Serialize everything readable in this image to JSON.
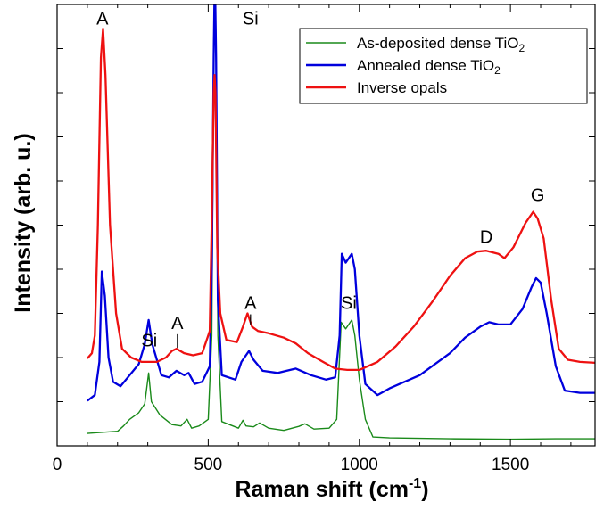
{
  "chart_data": {
    "type": "line",
    "title": "",
    "xlabel_main": "Raman shift (cm",
    "xlabel_sup": "-1",
    "xlabel_tail": ")",
    "ylabel": "Intensity (arb. u.)",
    "xlim": [
      0,
      1780
    ],
    "ylim": [
      0,
      1000
    ],
    "x_ticks": [
      0,
      500,
      1000,
      1500
    ],
    "y_ticks_unlabeled": true,
    "grid": false,
    "legend_position": "top-right",
    "series": [
      {
        "name": "As-deposited dense TiO",
        "name_sub": "2",
        "color": "#1a8a1a",
        "points": [
          [
            100,
            28
          ],
          [
            200,
            33
          ],
          [
            220,
            45
          ],
          [
            240,
            60
          ],
          [
            270,
            75
          ],
          [
            290,
            95
          ],
          [
            303,
            165
          ],
          [
            312,
            100
          ],
          [
            340,
            70
          ],
          [
            380,
            48
          ],
          [
            410,
            45
          ],
          [
            430,
            60
          ],
          [
            445,
            40
          ],
          [
            470,
            45
          ],
          [
            500,
            60
          ],
          [
            512,
            250
          ],
          [
            518,
            900
          ],
          [
            522,
            1100
          ],
          [
            526,
            900
          ],
          [
            532,
            250
          ],
          [
            545,
            55
          ],
          [
            600,
            40
          ],
          [
            615,
            58
          ],
          [
            625,
            45
          ],
          [
            650,
            43
          ],
          [
            670,
            52
          ],
          [
            700,
            40
          ],
          [
            750,
            35
          ],
          [
            800,
            44
          ],
          [
            820,
            50
          ],
          [
            850,
            38
          ],
          [
            900,
            40
          ],
          [
            925,
            60
          ],
          [
            940,
            280
          ],
          [
            955,
            265
          ],
          [
            975,
            285
          ],
          [
            985,
            250
          ],
          [
            1000,
            150
          ],
          [
            1020,
            60
          ],
          [
            1045,
            20
          ],
          [
            1100,
            18
          ],
          [
            1300,
            16
          ],
          [
            1500,
            15
          ],
          [
            1650,
            16
          ],
          [
            1780,
            16
          ]
        ]
      },
      {
        "name": "Annealed dense TiO",
        "name_sub": "2",
        "color": "#0000dd",
        "points": [
          [
            100,
            102
          ],
          [
            125,
            115
          ],
          [
            140,
            190
          ],
          [
            148,
            395
          ],
          [
            158,
            340
          ],
          [
            170,
            200
          ],
          [
            185,
            145
          ],
          [
            210,
            135
          ],
          [
            240,
            160
          ],
          [
            270,
            185
          ],
          [
            290,
            230
          ],
          [
            303,
            285
          ],
          [
            315,
            230
          ],
          [
            345,
            160
          ],
          [
            370,
            155
          ],
          [
            395,
            170
          ],
          [
            420,
            160
          ],
          [
            435,
            165
          ],
          [
            455,
            140
          ],
          [
            480,
            145
          ],
          [
            505,
            180
          ],
          [
            512,
            400
          ],
          [
            518,
            880
          ],
          [
            522,
            1080
          ],
          [
            526,
            880
          ],
          [
            532,
            330
          ],
          [
            545,
            160
          ],
          [
            590,
            150
          ],
          [
            610,
            190
          ],
          [
            635,
            215
          ],
          [
            650,
            195
          ],
          [
            680,
            170
          ],
          [
            730,
            165
          ],
          [
            790,
            175
          ],
          [
            840,
            160
          ],
          [
            890,
            150
          ],
          [
            920,
            155
          ],
          [
            935,
            250
          ],
          [
            942,
            435
          ],
          [
            955,
            415
          ],
          [
            975,
            435
          ],
          [
            985,
            400
          ],
          [
            1000,
            250
          ],
          [
            1020,
            140
          ],
          [
            1060,
            115
          ],
          [
            1100,
            130
          ],
          [
            1200,
            160
          ],
          [
            1300,
            210
          ],
          [
            1350,
            245
          ],
          [
            1400,
            270
          ],
          [
            1430,
            280
          ],
          [
            1460,
            275
          ],
          [
            1500,
            275
          ],
          [
            1540,
            310
          ],
          [
            1570,
            360
          ],
          [
            1585,
            380
          ],
          [
            1600,
            370
          ],
          [
            1620,
            300
          ],
          [
            1650,
            180
          ],
          [
            1680,
            125
          ],
          [
            1730,
            120
          ],
          [
            1780,
            120
          ]
        ]
      },
      {
        "name": "Inverse opals",
        "name_sub": "",
        "color": "#ee1111",
        "points": [
          [
            100,
            198
          ],
          [
            115,
            210
          ],
          [
            125,
            250
          ],
          [
            135,
            500
          ],
          [
            145,
            880
          ],
          [
            152,
            945
          ],
          [
            160,
            840
          ],
          [
            175,
            500
          ],
          [
            195,
            300
          ],
          [
            215,
            220
          ],
          [
            245,
            200
          ],
          [
            280,
            190
          ],
          [
            300,
            190
          ],
          [
            330,
            190
          ],
          [
            360,
            200
          ],
          [
            380,
            215
          ],
          [
            395,
            220
          ],
          [
            420,
            210
          ],
          [
            450,
            205
          ],
          [
            480,
            210
          ],
          [
            505,
            260
          ],
          [
            512,
            520
          ],
          [
            518,
            800
          ],
          [
            521,
            840
          ],
          [
            524,
            800
          ],
          [
            530,
            450
          ],
          [
            540,
            300
          ],
          [
            560,
            240
          ],
          [
            595,
            235
          ],
          [
            615,
            270
          ],
          [
            630,
            300
          ],
          [
            645,
            270
          ],
          [
            665,
            260
          ],
          [
            700,
            255
          ],
          [
            750,
            245
          ],
          [
            790,
            232
          ],
          [
            830,
            210
          ],
          [
            880,
            190
          ],
          [
            920,
            175
          ],
          [
            960,
            172
          ],
          [
            1000,
            172
          ],
          [
            1060,
            190
          ],
          [
            1120,
            225
          ],
          [
            1180,
            270
          ],
          [
            1240,
            325
          ],
          [
            1300,
            385
          ],
          [
            1350,
            425
          ],
          [
            1390,
            440
          ],
          [
            1420,
            442
          ],
          [
            1460,
            435
          ],
          [
            1480,
            425
          ],
          [
            1510,
            450
          ],
          [
            1550,
            505
          ],
          [
            1575,
            530
          ],
          [
            1590,
            515
          ],
          [
            1610,
            470
          ],
          [
            1635,
            330
          ],
          [
            1660,
            220
          ],
          [
            1690,
            195
          ],
          [
            1730,
            190
          ],
          [
            1780,
            188
          ]
        ]
      }
    ],
    "annotations": [
      {
        "text": "A",
        "x": 150,
        "y": 955,
        "leader": false
      },
      {
        "text": "Si",
        "x": 640,
        "y": 955,
        "leader": false
      },
      {
        "text": "Si",
        "x": 305,
        "y": 225,
        "leader": false
      },
      {
        "text": "A",
        "x": 398,
        "y": 265,
        "leader": true,
        "leader_to": 222
      },
      {
        "text": "A",
        "x": 640,
        "y": 310,
        "leader": true,
        "leader_to": 275
      },
      {
        "text": "Si",
        "x": 965,
        "y": 310,
        "leader": false
      },
      {
        "text": "D",
        "x": 1420,
        "y": 460,
        "leader": false
      },
      {
        "text": "G",
        "x": 1590,
        "y": 555,
        "leader": false
      }
    ]
  }
}
